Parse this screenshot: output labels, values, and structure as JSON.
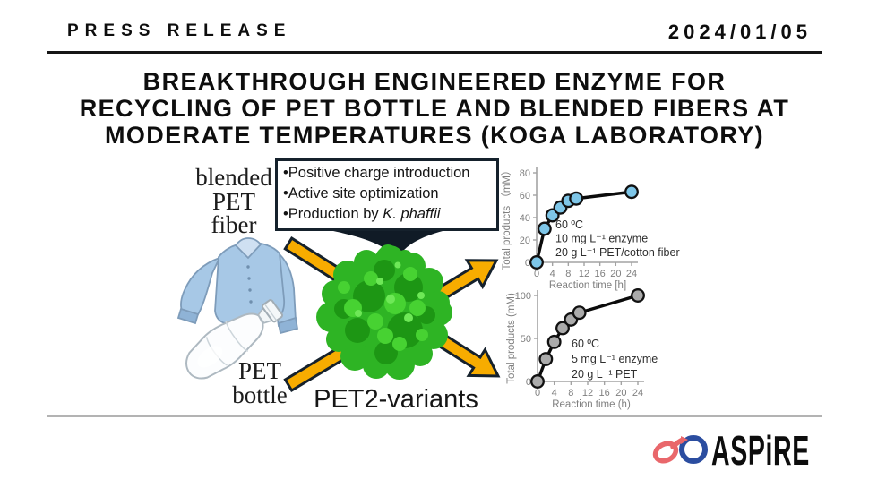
{
  "header": {
    "label": "PRESS RELEASE",
    "date": "2024/01/05"
  },
  "title": {
    "lines": [
      "BREAKTHROUGH ENGINEERED ENZYME FOR",
      "RECYCLING OF PET BOTTLE AND BLENDED FIBERS AT",
      "MODERATE TEMPERATURES (KOGA LABORATORY)"
    ]
  },
  "figure": {
    "fiber_label_lines": [
      "blended",
      "PET",
      "fiber"
    ],
    "bottle_label_lines": [
      "PET",
      "bottle"
    ],
    "enzyme_label": "PET2-variants",
    "bullets": [
      {
        "text": "Positive charge introduction",
        "italic": ""
      },
      {
        "text": "Active site optimization",
        "italic": ""
      },
      {
        "text": "Production by ",
        "italic": "K. phaffii"
      }
    ]
  },
  "chart_data": [
    {
      "type": "line",
      "x": [
        0,
        2,
        4,
        6,
        8,
        10,
        24
      ],
      "y": [
        0,
        30,
        42,
        49,
        55,
        57,
        63
      ],
      "xlabel": "Reaction time [h]",
      "ylabel": "Total products （mM）",
      "xticks": [
        0,
        4,
        8,
        12,
        16,
        20,
        24
      ],
      "yticks": [
        0,
        20,
        40,
        60,
        80
      ],
      "xlim": [
        0,
        24
      ],
      "ylim": [
        0,
        80
      ],
      "annotation": [
        "60 ºC",
        "10 mg L⁻¹ enzyme",
        "20 g L⁻¹ PET/cotton fiber"
      ],
      "marker_color": "#7ec6e8",
      "line_color": "#0b0b0b",
      "legend": "none",
      "grid": false
    },
    {
      "type": "line",
      "x": [
        0,
        2,
        4,
        6,
        8,
        10,
        24
      ],
      "y": [
        0,
        26,
        46,
        62,
        72,
        80,
        100
      ],
      "xlabel": "Reaction time (h)",
      "ylabel": "Total products (mM)",
      "xticks": [
        0,
        4,
        8,
        12,
        16,
        20,
        24
      ],
      "yticks": [
        0,
        50,
        100
      ],
      "xlim": [
        0,
        24
      ],
      "ylim": [
        0,
        100
      ],
      "annotation": [
        "60 ºC",
        "5 mg L⁻¹ enzyme",
        "20 g L⁻¹ PET"
      ],
      "marker_color": "#ababab",
      "line_color": "#0b0b0b",
      "legend": "none",
      "grid": false
    }
  ],
  "logo": {
    "text": "ASPiRE",
    "red": "#e9676b",
    "blue": "#2b4da0"
  },
  "colors": {
    "arrow_fill": "#f7ac00",
    "arrow_outline": "#15212c",
    "protein_green": "#2eb424",
    "shirt_blue": "#a7c8e6",
    "divider_gray": "#b3b3b3"
  }
}
